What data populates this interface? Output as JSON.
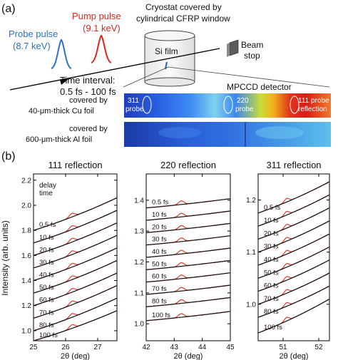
{
  "panel_a": {
    "label": "(a)",
    "probe_pulse": {
      "line1": "Probe pulse",
      "line2": "(8.7 keV)",
      "color": "#2a72c9"
    },
    "pump_pulse": {
      "line1": "Pump pulse",
      "line2": "(9.1 keV)",
      "color": "#e0261c"
    },
    "cryostat": {
      "line1": "Cryostat covered by",
      "line2": "cylindrical CFRP window"
    },
    "si_film": "Si film",
    "beam_stop": {
      "line1": "Beam",
      "line2": "stop"
    },
    "time_interval": {
      "line1": "Time interval:",
      "line2": "0.5 fs - 100 fs"
    },
    "detector": {
      "title": "MPCCD detector",
      "cu_row": {
        "line1": "covered by",
        "line2": "40-μm-thick Cu foil"
      },
      "al_row": {
        "line1": "covered by",
        "line2": "600-μm-thick Al foil"
      },
      "marker_311": {
        "line1": "311",
        "line2": "probe"
      },
      "marker_220": {
        "line1": "220",
        "line2": "probe"
      },
      "marker_111": {
        "line1": "111 probe",
        "line2": "reflection"
      }
    }
  },
  "panel_b": {
    "label": "(b)"
  },
  "chart_data": [
    {
      "type": "line",
      "title": "111 reflection",
      "xlabel": "2θ (deg)",
      "ylabel": "Intensity (arb. units)",
      "xlim": [
        25,
        27.6
      ],
      "ylim": [
        0.92,
        2.25
      ],
      "xticks": [
        25,
        26,
        27
      ],
      "yticks": [
        1.0,
        1.2,
        1.4,
        1.6,
        1.8,
        2.0,
        2.2
      ],
      "legend_title": [
        "delay",
        "time"
      ],
      "peak_x": 26.2,
      "series": [
        {
          "name": "0.5 fs",
          "y_left": 1.8,
          "y_right": 2.06
        },
        {
          "name": "10 fs",
          "y_left": 1.7,
          "y_right": 1.96
        },
        {
          "name": "20 fs",
          "y_left": 1.6,
          "y_right": 1.86
        },
        {
          "name": "30 fs",
          "y_left": 1.5,
          "y_right": 1.76
        },
        {
          "name": "40 fs",
          "y_left": 1.4,
          "y_right": 1.66
        },
        {
          "name": "50 fs",
          "y_left": 1.3,
          "y_right": 1.56
        },
        {
          "name": "60 fs",
          "y_left": 1.2,
          "y_right": 1.46
        },
        {
          "name": "70 fs",
          "y_left": 1.1,
          "y_right": 1.36
        },
        {
          "name": "80 fs",
          "y_left": 1.0,
          "y_right": 1.26
        },
        {
          "name": "100 fs",
          "y_left": 0.92,
          "y_right": 1.16
        }
      ]
    },
    {
      "type": "line",
      "title": "220 reflection",
      "xlabel": "2θ (deg)",
      "ylabel": "",
      "xlim": [
        42,
        45
      ],
      "ylim": [
        0.945,
        1.485
      ],
      "xticks": [
        42,
        43,
        44,
        45
      ],
      "yticks": [
        1.0,
        1.1,
        1.2,
        1.3,
        1.4
      ],
      "peak_x": 43.25,
      "series": [
        {
          "name": "0.5 fs",
          "y_left": 1.375,
          "y_right": 1.405
        },
        {
          "name": "10 fs",
          "y_left": 1.335,
          "y_right": 1.365
        },
        {
          "name": "20 fs",
          "y_left": 1.295,
          "y_right": 1.325
        },
        {
          "name": "30 fs",
          "y_left": 1.255,
          "y_right": 1.285
        },
        {
          "name": "40 fs",
          "y_left": 1.215,
          "y_right": 1.245
        },
        {
          "name": "50 fs",
          "y_left": 1.175,
          "y_right": 1.205
        },
        {
          "name": "60 fs",
          "y_left": 1.135,
          "y_right": 1.165
        },
        {
          "name": "70 fs",
          "y_left": 1.095,
          "y_right": 1.125
        },
        {
          "name": "80 fs",
          "y_left": 1.055,
          "y_right": 1.085
        },
        {
          "name": "100 fs",
          "y_left": 1.01,
          "y_right": 1.04
        }
      ]
    },
    {
      "type": "line",
      "title": "311 reflection",
      "xlabel": "2θ (deg)",
      "ylabel": "",
      "xlim": [
        50.3,
        52.3
      ],
      "ylim": [
        0.93,
        1.25
      ],
      "xticks": [
        51,
        52
      ],
      "yticks": [
        1.0,
        1.1,
        1.2
      ],
      "peak_x": 51.1,
      "series": [
        {
          "name": "0.5 fs",
          "y_left": 1.175,
          "y_right": 1.235
        },
        {
          "name": "10 fs",
          "y_left": 1.15,
          "y_right": 1.21
        },
        {
          "name": "20 fs",
          "y_left": 1.125,
          "y_right": 1.185
        },
        {
          "name": "30 fs",
          "y_left": 1.1,
          "y_right": 1.16
        },
        {
          "name": "40 fs",
          "y_left": 1.075,
          "y_right": 1.135
        },
        {
          "name": "50 fs",
          "y_left": 1.05,
          "y_right": 1.11
        },
        {
          "name": "60 fs",
          "y_left": 1.025,
          "y_right": 1.085
        },
        {
          "name": "70 fs",
          "y_left": 1.0,
          "y_right": 1.06
        },
        {
          "name": "80 fs",
          "y_left": 0.975,
          "y_right": 1.035
        },
        {
          "name": "100 fs",
          "y_left": 0.945,
          "y_right": 1.01
        }
      ]
    }
  ]
}
